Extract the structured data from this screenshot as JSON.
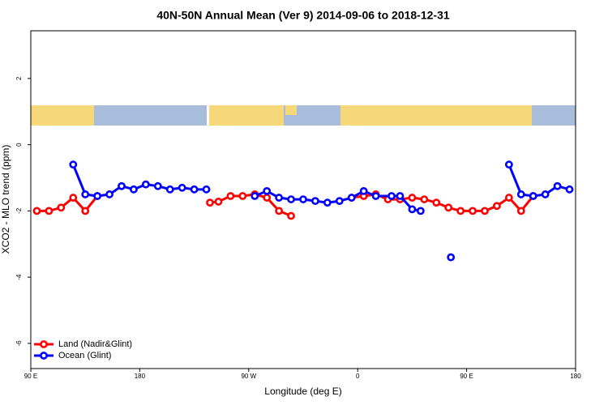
{
  "chart_data": {
    "type": "line",
    "title": "40N-50N Annual Mean (Ver 9)   2014-09-06 to 2018-12-31",
    "x_label": "Longitude (deg E)",
    "y_label": "XCO2 - MLO trend (ppm)",
    "xlim": [
      90,
      540
    ],
    "xticks": [
      {
        "value": 90,
        "label": "90 E"
      },
      180,
      {
        "value": 270,
        "label": "90 W"
      },
      {
        "value": 360,
        "label": "0"
      },
      {
        "value": 450,
        "label": "90 E"
      },
      {
        "value": 540,
        "label": "180"
      }
    ],
    "ylim": [
      -6.76,
      3.44
    ],
    "yticks": [
      2,
      0,
      -2,
      -4,
      -6
    ],
    "legend": "bottom-left",
    "series": [
      {
        "name": "Land (Nadir&Glint)",
        "color": "#ff0000",
        "x": [
          95,
          105,
          115,
          125,
          135,
          145,
          null,
          238,
          245,
          255,
          265,
          275,
          285,
          295,
          305,
          null,
          355,
          365,
          375,
          385,
          395,
          405,
          415,
          425,
          435,
          445,
          455,
          465,
          475,
          485,
          495,
          505
        ],
        "values": [
          -2.0,
          -2.0,
          -1.9,
          -1.6,
          -2.0,
          -1.55,
          null,
          -1.75,
          -1.72,
          -1.55,
          -1.55,
          -1.5,
          -1.6,
          -2.0,
          -2.15,
          null,
          -1.6,
          -1.55,
          -1.5,
          -1.65,
          -1.65,
          -1.6,
          -1.65,
          -1.75,
          -1.9,
          -2.0,
          -2.0,
          -2.0,
          -1.85,
          -1.6,
          -2.0,
          -1.55
        ]
      },
      {
        "name": "Ocean (Glint)",
        "color": "#0000ff",
        "x": [
          125,
          135,
          145,
          155,
          165,
          175,
          185,
          195,
          205,
          215,
          225,
          235,
          null,
          275,
          285,
          295,
          305,
          315,
          325,
          335,
          345,
          355,
          365,
          375,
          388,
          395,
          405,
          412,
          null,
          437,
          null,
          485,
          495,
          505,
          515,
          525,
          535
        ],
        "values": [
          -0.6,
          -1.5,
          -1.55,
          -1.5,
          -1.25,
          -1.35,
          -1.2,
          -1.25,
          -1.35,
          -1.3,
          -1.35,
          -1.35,
          null,
          -1.55,
          -1.4,
          -1.6,
          -1.65,
          -1.65,
          -1.7,
          -1.75,
          -1.7,
          -1.6,
          -1.4,
          -1.55,
          -1.55,
          -1.55,
          -1.95,
          -2.0,
          null,
          -3.4,
          null,
          -0.6,
          -1.5,
          -1.55,
          -1.5,
          -1.25,
          -1.35
        ]
      }
    ]
  }
}
